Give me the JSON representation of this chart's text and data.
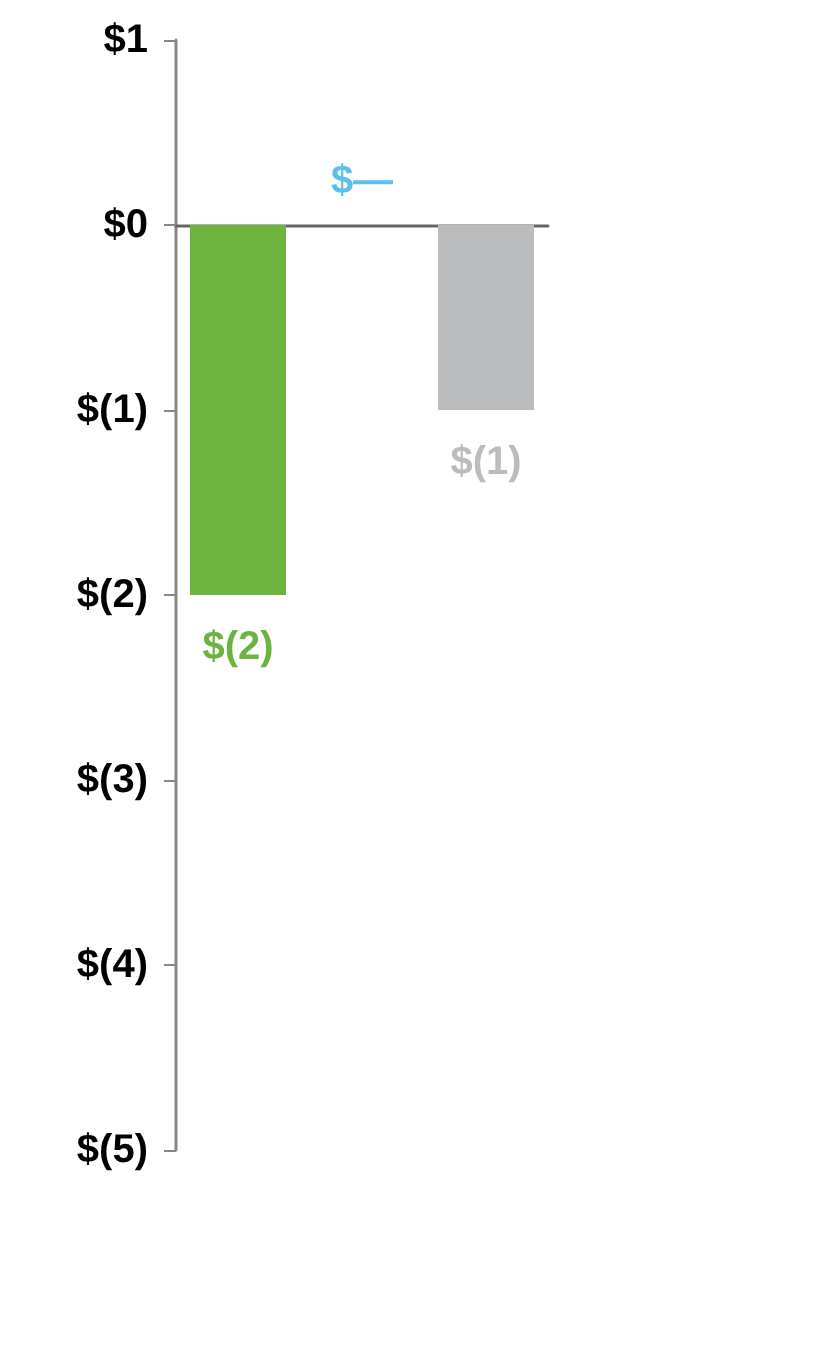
{
  "chart_data": {
    "type": "bar",
    "categories": [
      null,
      null,
      null
    ],
    "values": [
      -2,
      0,
      -1
    ],
    "colors": [
      "#6cb33f",
      "#5bc0eb",
      "#bbbcbe"
    ],
    "value_labels": [
      "$(2)",
      "$—",
      "$(1)"
    ],
    "ylim": [
      -5,
      1
    ],
    "yticks": [
      {
        "value": 1,
        "label": "$1"
      },
      {
        "value": 0,
        "label": "$0"
      },
      {
        "value": -1,
        "label": "$(1)"
      },
      {
        "value": -2,
        "label": "$(2)"
      },
      {
        "value": -3,
        "label": "$(3)"
      },
      {
        "value": -4,
        "label": "$(4)"
      },
      {
        "value": -5,
        "label": "$(5)"
      }
    ],
    "tick_labels": "y"
  }
}
